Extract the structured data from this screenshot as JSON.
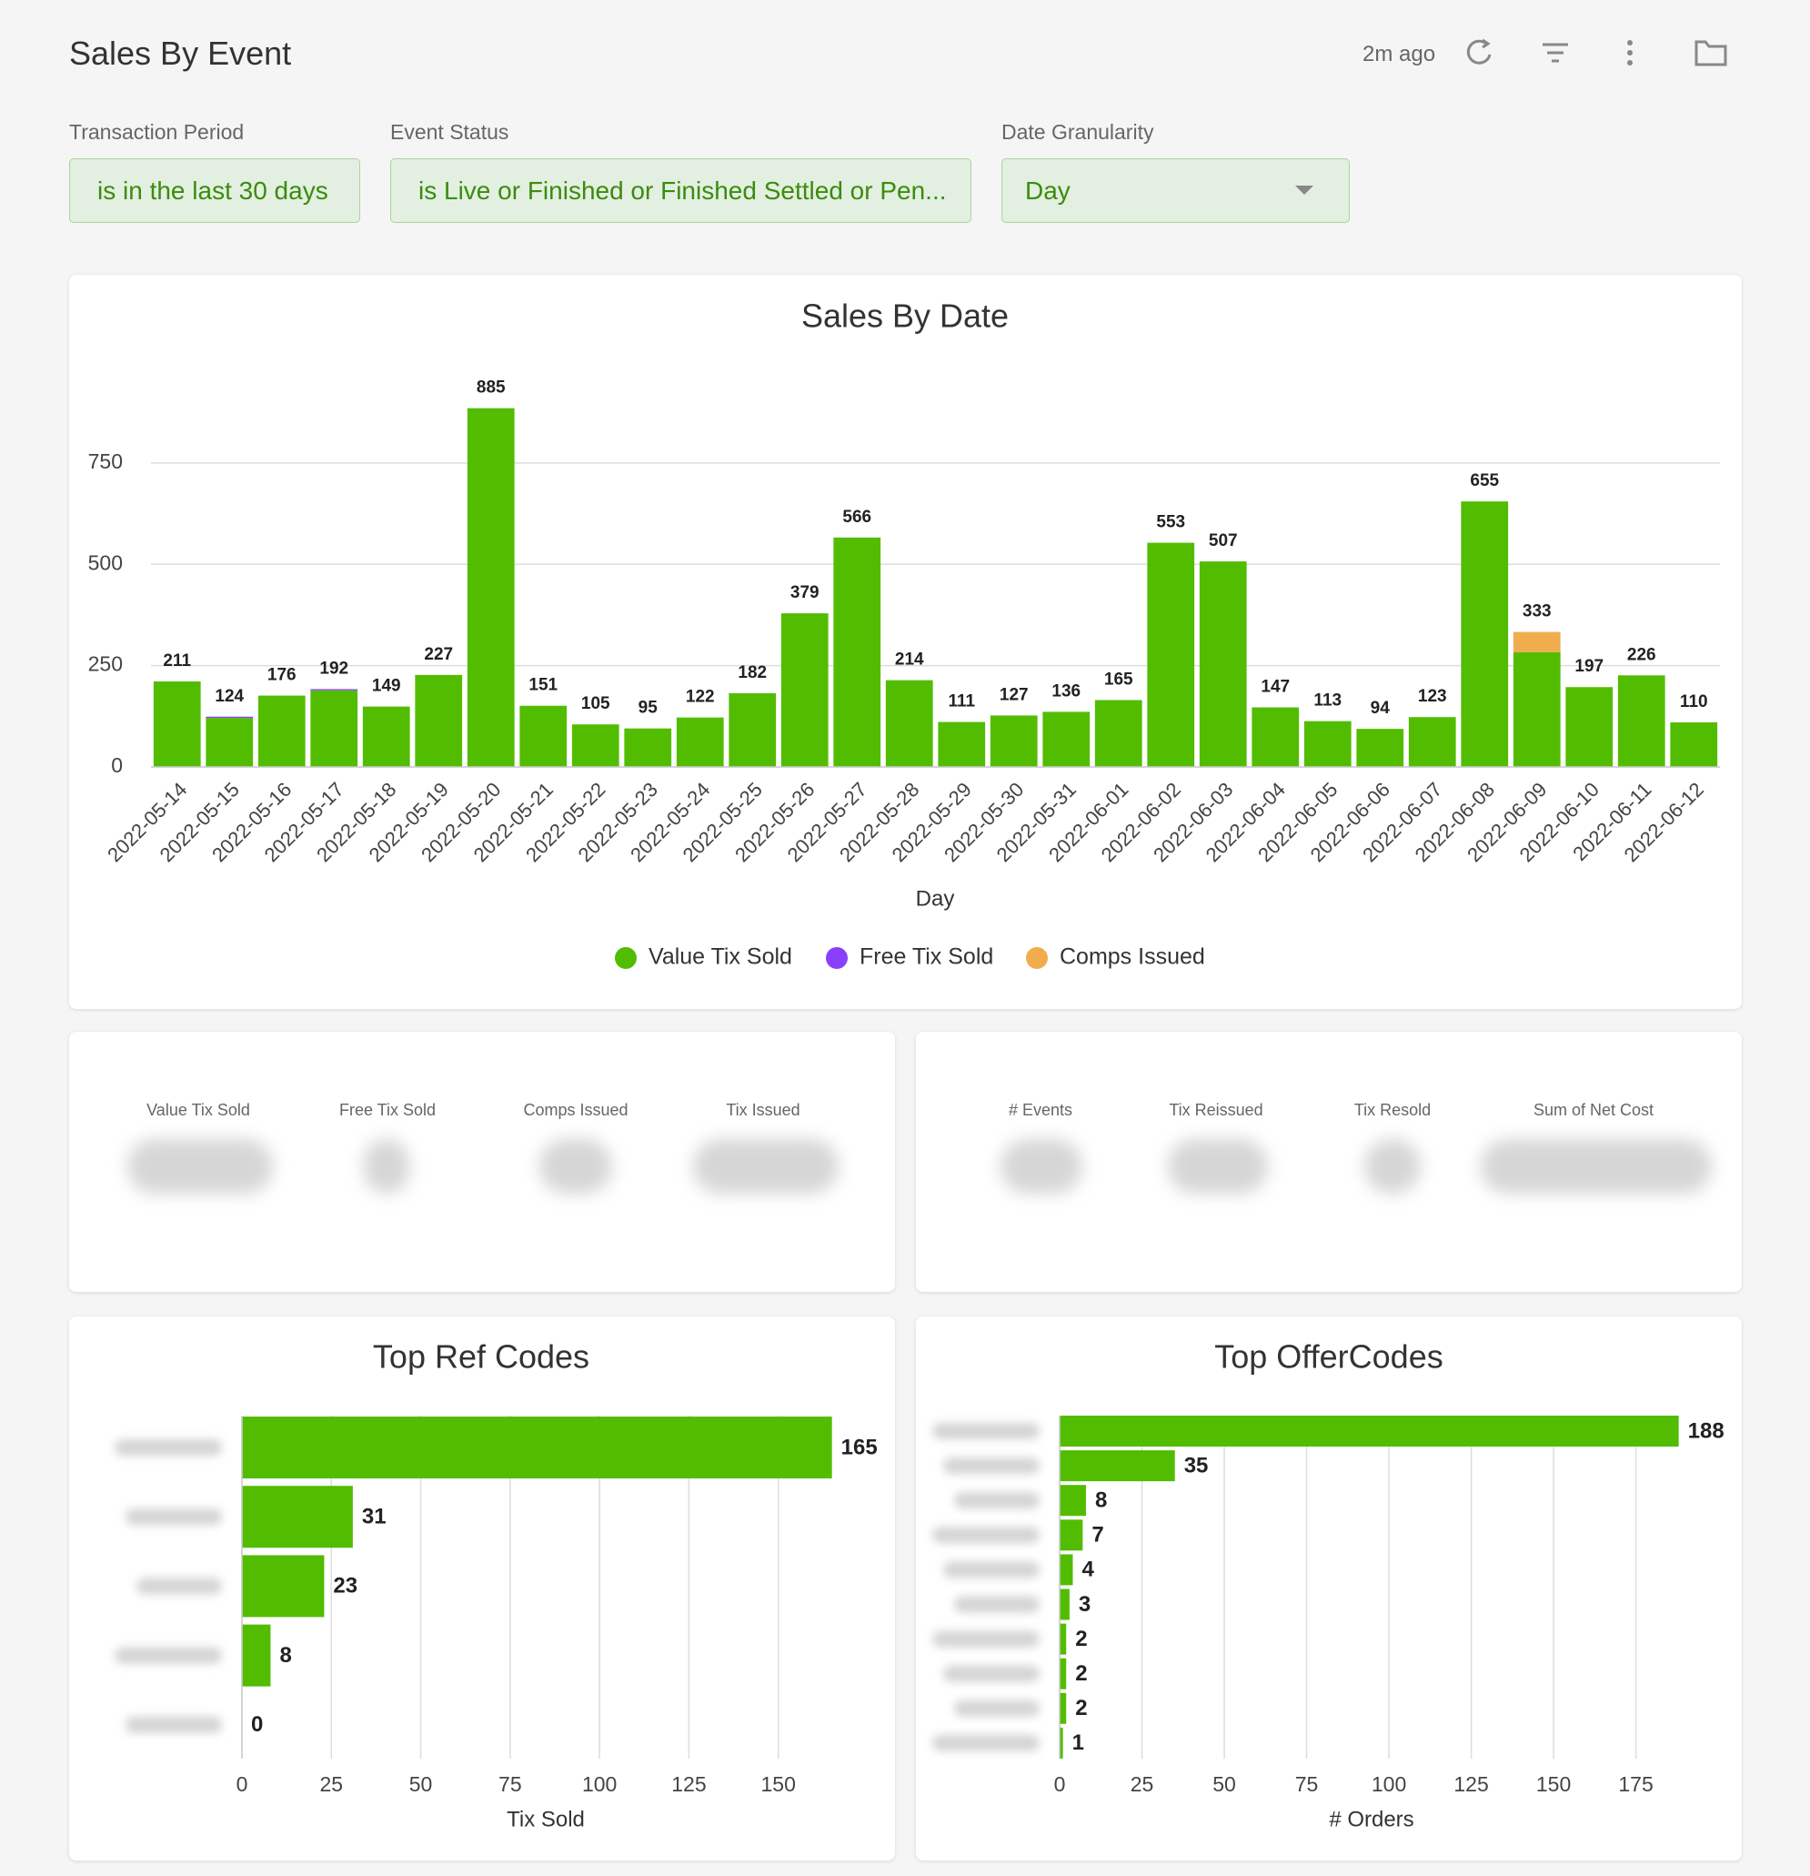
{
  "header": {
    "title": "Sales By Event",
    "updated": "2m ago"
  },
  "filters": [
    {
      "label": "Transaction Period",
      "value": "is in the last 30 days"
    },
    {
      "label": "Event Status",
      "value": "is Live or Finished or Finished Settled or Pen..."
    },
    {
      "label": "Date Granularity",
      "value": "Day"
    }
  ],
  "kpis": {
    "left": [
      "Value Tix Sold",
      "Free Tix Sold",
      "Comps Issued",
      "Tix Issued"
    ],
    "right": [
      "# Events",
      "Tix Reissued",
      "Tix Resold",
      "Sum of Net Cost"
    ]
  },
  "chart_data": [
    {
      "type": "bar",
      "stacked": true,
      "title": "Sales By Date",
      "x_label": "Day",
      "categories": [
        "2022-05-14",
        "2022-05-15",
        "2022-05-16",
        "2022-05-17",
        "2022-05-18",
        "2022-05-19",
        "2022-05-20",
        "2022-05-21",
        "2022-05-22",
        "2022-05-23",
        "2022-05-24",
        "2022-05-25",
        "2022-05-26",
        "2022-05-27",
        "2022-05-28",
        "2022-05-29",
        "2022-05-30",
        "2022-05-31",
        "2022-06-01",
        "2022-06-02",
        "2022-06-03",
        "2022-06-04",
        "2022-06-05",
        "2022-06-06",
        "2022-06-07",
        "2022-06-08",
        "2022-06-09",
        "2022-06-10",
        "2022-06-11",
        "2022-06-12"
      ],
      "series": [
        {
          "name": "Value Tix Sold",
          "color": "#52bd00",
          "values": [
            211,
            121,
            176,
            189,
            149,
            227,
            885,
            151,
            105,
            95,
            122,
            182,
            379,
            566,
            214,
            111,
            127,
            136,
            165,
            553,
            507,
            147,
            113,
            94,
            123,
            655,
            283,
            197,
            226,
            110
          ]
        },
        {
          "name": "Free Tix Sold",
          "color": "#8a3ffc",
          "values": [
            0,
            3,
            0,
            3,
            0,
            0,
            0,
            0,
            0,
            0,
            0,
            0,
            0,
            0,
            0,
            0,
            0,
            0,
            0,
            0,
            0,
            0,
            0,
            0,
            0,
            0,
            0,
            0,
            0,
            0
          ]
        },
        {
          "name": "Comps Issued",
          "color": "#f0ad4e",
          "values": [
            0,
            0,
            0,
            0,
            0,
            0,
            0,
            0,
            0,
            0,
            0,
            0,
            0,
            0,
            0,
            0,
            0,
            0,
            0,
            0,
            0,
            0,
            0,
            0,
            0,
            0,
            50,
            0,
            0,
            0
          ]
        }
      ],
      "totals": [
        211,
        124,
        176,
        192,
        149,
        227,
        885,
        151,
        105,
        95,
        122,
        182,
        379,
        566,
        214,
        111,
        127,
        136,
        165,
        553,
        507,
        147,
        113,
        94,
        123,
        655,
        333,
        197,
        226,
        110
      ],
      "ylim": [
        0,
        900
      ],
      "yticks": [
        0,
        250,
        500,
        750
      ],
      "grid": true,
      "legend": "bottom"
    },
    {
      "type": "barh",
      "title": "Top Ref Codes",
      "x_label": "Tix Sold",
      "categories": [
        null,
        null,
        null,
        null,
        null
      ],
      "values": [
        165,
        31,
        23,
        8,
        0
      ],
      "color": "#52bd00",
      "xlim": [
        0,
        175
      ],
      "xticks": [
        0,
        25,
        50,
        75,
        100,
        125,
        150
      ],
      "grid": true
    },
    {
      "type": "barh",
      "title": "Top OfferCodes",
      "x_label": "# Orders",
      "categories": [
        null,
        null,
        null,
        null,
        null,
        null,
        null,
        null,
        null,
        null
      ],
      "values": [
        188,
        35,
        8,
        7,
        4,
        3,
        2,
        2,
        2,
        1
      ],
      "color": "#52bd00",
      "xlim": [
        0,
        195
      ],
      "xticks": [
        0,
        25,
        50,
        75,
        100,
        125,
        150,
        175
      ],
      "grid": true
    }
  ]
}
